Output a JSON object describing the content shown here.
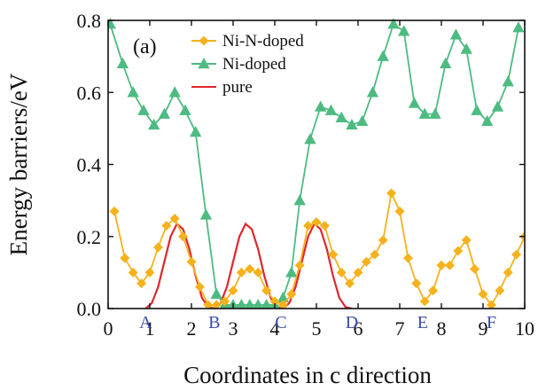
{
  "chart_data": {
    "type": "line",
    "panel_label": "(a)",
    "xlabel": "Coordinates in c direction",
    "ylabel": "Energy barriers/eV",
    "xlim": [
      0,
      10
    ],
    "ylim": [
      0,
      0.8
    ],
    "xticks": [
      "0",
      "1",
      "2",
      "3",
      "4",
      "5",
      "6",
      "7",
      "8",
      "9",
      "10"
    ],
    "yticks": [
      "0.0",
      "0.2",
      "0.4",
      "0.6",
      "0.8"
    ],
    "grid": false,
    "legend_position": "top-center",
    "point_labels": [
      {
        "label": "A",
        "x": 0.9
      },
      {
        "label": "B",
        "x": 2.55
      },
      {
        "label": "C",
        "x": 4.15
      },
      {
        "label": "D",
        "x": 5.85
      },
      {
        "label": "E",
        "x": 7.55
      },
      {
        "label": "F",
        "x": 9.2
      }
    ],
    "colors": {
      "ni_n_doped": "#f5b21d",
      "ni_doped": "#4dbb82",
      "pure": "#e0262c",
      "point_labels": "#3a4aa8"
    },
    "series": [
      {
        "name": "Ni-N-doped",
        "marker": "diamond",
        "x": [
          0.15,
          0.4,
          0.6,
          0.8,
          1.0,
          1.2,
          1.4,
          1.6,
          1.8,
          2.0,
          2.2,
          2.4,
          2.6,
          2.8,
          3.0,
          3.2,
          3.4,
          3.6,
          3.8,
          4.0,
          4.2,
          4.4,
          4.6,
          4.8,
          5.0,
          5.2,
          5.4,
          5.6,
          5.8,
          6.0,
          6.2,
          6.4,
          6.6,
          6.8,
          7.0,
          7.2,
          7.4,
          7.6,
          7.8,
          8.0,
          8.2,
          8.4,
          8.6,
          8.8,
          9.0,
          9.2,
          9.4,
          9.6,
          9.8,
          10.0
        ],
        "y": [
          0.27,
          0.14,
          0.1,
          0.07,
          0.1,
          0.17,
          0.23,
          0.25,
          0.2,
          0.13,
          0.06,
          0.01,
          0.01,
          0.02,
          0.05,
          0.1,
          0.11,
          0.1,
          0.05,
          0.02,
          0.01,
          0.04,
          0.12,
          0.23,
          0.24,
          0.23,
          0.15,
          0.1,
          0.07,
          0.1,
          0.13,
          0.15,
          0.19,
          0.32,
          0.27,
          0.14,
          0.07,
          0.02,
          0.05,
          0.12,
          0.12,
          0.16,
          0.19,
          0.11,
          0.04,
          0.01,
          0.05,
          0.1,
          0.15,
          0.2
        ]
      },
      {
        "name": "Ni-doped",
        "marker": "triangle",
        "x": [
          0.05,
          0.35,
          0.6,
          0.85,
          1.1,
          1.35,
          1.6,
          1.85,
          2.1,
          2.35,
          2.6,
          2.8,
          3.0,
          3.2,
          3.4,
          3.6,
          3.8,
          4.0,
          4.2,
          4.4,
          4.6,
          4.85,
          5.1,
          5.35,
          5.6,
          5.85,
          6.1,
          6.35,
          6.6,
          6.85,
          7.1,
          7.35,
          7.6,
          7.85,
          8.1,
          8.35,
          8.6,
          8.85,
          9.1,
          9.35,
          9.6,
          9.85
        ],
        "y": [
          0.79,
          0.68,
          0.6,
          0.55,
          0.51,
          0.54,
          0.6,
          0.55,
          0.49,
          0.26,
          0.04,
          0.01,
          0.01,
          0.01,
          0.01,
          0.01,
          0.01,
          0.01,
          0.03,
          0.1,
          0.3,
          0.47,
          0.56,
          0.55,
          0.53,
          0.51,
          0.52,
          0.6,
          0.7,
          0.79,
          0.77,
          0.57,
          0.54,
          0.54,
          0.68,
          0.76,
          0.72,
          0.55,
          0.52,
          0.56,
          0.63,
          0.78
        ]
      },
      {
        "name": "pure",
        "marker": "none",
        "x": [
          0.9,
          1.05,
          1.2,
          1.35,
          1.5,
          1.65,
          1.8,
          1.95,
          2.1,
          2.25,
          2.4,
          2.55,
          2.7,
          2.85,
          3.0,
          3.15,
          3.3,
          3.45,
          3.6,
          3.75,
          3.9,
          4.05,
          4.2,
          4.35,
          4.5,
          4.65,
          4.8,
          4.95,
          5.1,
          5.25,
          5.4,
          5.55,
          5.7,
          5.85
        ],
        "y": [
          0.0,
          0.015,
          0.06,
          0.13,
          0.2,
          0.235,
          0.22,
          0.165,
          0.09,
          0.03,
          0.004,
          0.0,
          0.015,
          0.06,
          0.13,
          0.2,
          0.235,
          0.22,
          0.165,
          0.09,
          0.03,
          0.004,
          0.0,
          0.015,
          0.06,
          0.13,
          0.2,
          0.235,
          0.22,
          0.165,
          0.09,
          0.03,
          0.004,
          0.0
        ]
      }
    ]
  }
}
